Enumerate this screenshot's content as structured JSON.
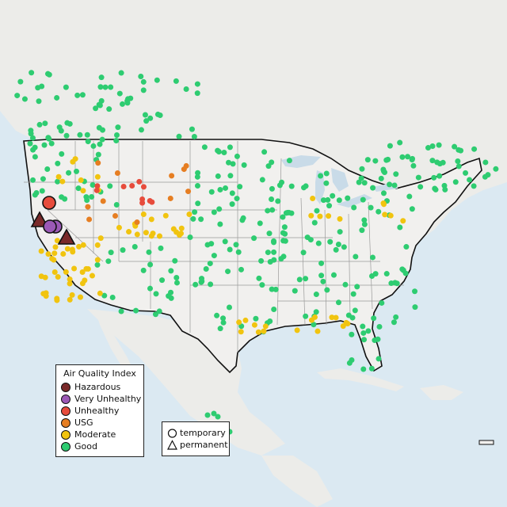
{
  "legend": {
    "title": "Air Quality Index",
    "items": [
      {
        "label": "Hazardous",
        "color": "#7a2a2a"
      },
      {
        "label": "Very Unhealthy",
        "color": "#9b59b6"
      },
      {
        "label": "Unhealthy",
        "color": "#e74c3c"
      },
      {
        "label": "USG",
        "color": "#e67e22"
      },
      {
        "label": "Moderate",
        "color": "#f1c40f"
      },
      {
        "label": "Good",
        "color": "#2ecc71"
      }
    ]
  },
  "shape_legend": {
    "items": [
      {
        "label": "temporary",
        "shape": "circle"
      },
      {
        "label": "permanent",
        "shape": "triangle"
      }
    ]
  },
  "map_colors": {
    "water": "#dbe9f2",
    "land": "#ecece9",
    "us_land": "#f1f0ee",
    "border": "#111111",
    "state_line": "#9a9a9a",
    "lake": "#c9dbe8"
  }
}
